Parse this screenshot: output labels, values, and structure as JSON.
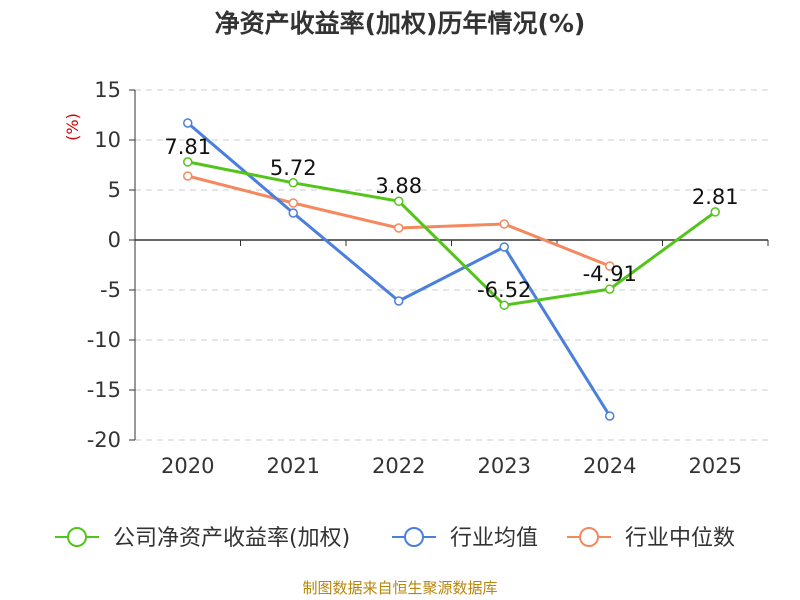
{
  "chart_data": {
    "type": "line",
    "title": "净资产收益率(加权)历年情况(%)",
    "ylabel": "(%)",
    "xlabel": "",
    "categories": [
      "2020",
      "2021",
      "2022",
      "2023",
      "2024",
      "2025"
    ],
    "ylim": [
      -20,
      15
    ],
    "yticks": [
      15,
      10,
      5,
      0,
      -5,
      -10,
      -15,
      -20
    ],
    "grid": true,
    "legend_position": "bottom",
    "series": [
      {
        "name": "公司净资产收益率(加权)",
        "color": "#52c41a",
        "values": [
          7.81,
          5.72,
          3.88,
          -6.52,
          -4.91,
          2.81
        ],
        "labels": [
          "7.81",
          "5.72",
          "3.88",
          "-6.52",
          "-4.91",
          "2.81"
        ]
      },
      {
        "name": "行业均值",
        "color": "#4a7fdc",
        "values": [
          11.7,
          2.7,
          -6.1,
          -0.7,
          -17.6,
          null
        ]
      },
      {
        "name": "行业中位数",
        "color": "#f4895f",
        "values": [
          6.4,
          3.7,
          1.2,
          1.6,
          -2.6,
          null
        ]
      }
    ],
    "source": "制图数据来自恒生聚源数据库"
  }
}
